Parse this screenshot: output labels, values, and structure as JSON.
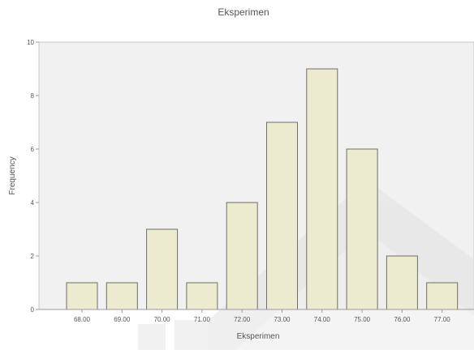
{
  "chart_data": {
    "type": "bar",
    "title": "Eksperimen",
    "xlabel": "Eksperimen",
    "ylabel": "Frequency",
    "categories": [
      "68.00",
      "69.00",
      "70.00",
      "71.00",
      "72.00",
      "73.00",
      "74.00",
      "75.00",
      "76.00",
      "77.00"
    ],
    "values": [
      1,
      1,
      3,
      1,
      4,
      7,
      9,
      6,
      2,
      1
    ],
    "ylim": [
      0,
      10
    ],
    "yticks": [
      "0",
      "2",
      "4",
      "6",
      "8",
      "10"
    ],
    "grid": false,
    "colors": {
      "bar_fill": "#ecebcf",
      "bar_stroke": "#6e6e66",
      "plot_bg": "#f1f1f1",
      "axis": "#9a9a9a",
      "text": "#555555"
    }
  }
}
